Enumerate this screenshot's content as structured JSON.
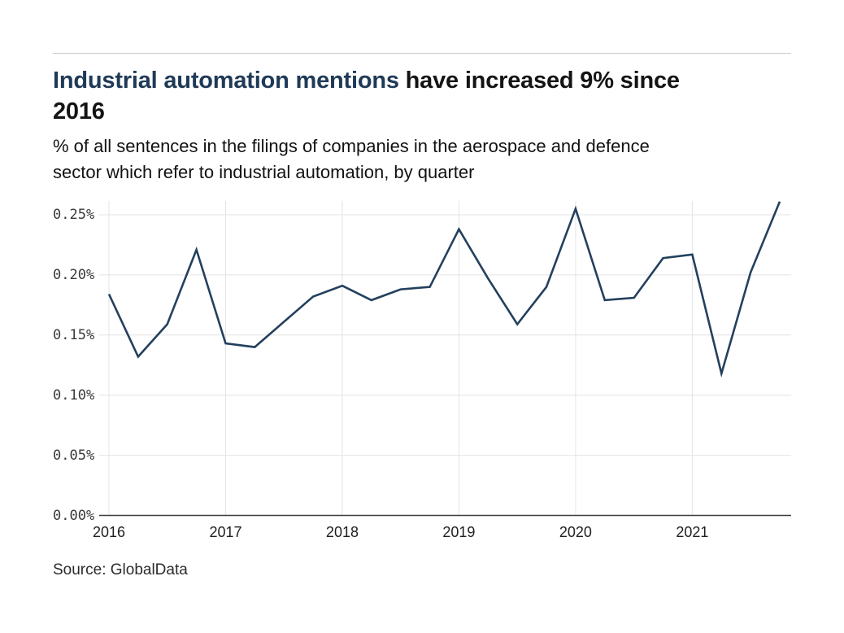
{
  "page": {
    "background": "#ffffff",
    "divider_color": "#cbcbcb"
  },
  "header": {
    "title_highlight": "Industrial automation mentions",
    "title_rest_line1": "have increased 9% since",
    "title_rest_line2": "2016",
    "title_highlight_color": "#1f3a57",
    "title_text_color": "#141414",
    "subtitle_line1": "% of all sentences in the filings of companies in the aerospace and defence",
    "subtitle_line2": "sector which refer to industrial automation, by quarter"
  },
  "chart_data": {
    "type": "line",
    "title": "Industrial automation mentions have increased 9% since 2016",
    "subtitle": "% of all sentences in the filings of companies in the aerospace and defence sector which refer to industrial automation, by quarter",
    "unit": "%",
    "x": [
      "2016 Q1",
      "2016 Q2",
      "2016 Q3",
      "2016 Q4",
      "2017 Q1",
      "2017 Q2",
      "2017 Q3",
      "2017 Q4",
      "2018 Q1",
      "2018 Q2",
      "2018 Q3",
      "2018 Q4",
      "2019 Q1",
      "2019 Q2",
      "2019 Q3",
      "2019 Q4",
      "2020 Q1",
      "2020 Q2",
      "2020 Q3",
      "2020 Q4",
      "2021 Q1",
      "2021 Q2",
      "2021 Q3",
      "2021 Q4"
    ],
    "values": [
      0.184,
      0.132,
      0.159,
      0.221,
      0.143,
      0.14,
      0.161,
      0.182,
      0.191,
      0.179,
      0.188,
      0.19,
      0.238,
      0.197,
      0.159,
      0.19,
      0.255,
      0.179,
      0.181,
      0.214,
      0.217,
      0.118,
      0.202,
      0.261
    ],
    "x_tick_labels": [
      "2016",
      "2017",
      "2018",
      "2019",
      "2020",
      "2021"
    ],
    "x_tick_positions": [
      0,
      4,
      8,
      12,
      16,
      20
    ],
    "y_tick_labels": [
      "0.00%",
      "0.05%",
      "0.10%",
      "0.15%",
      "0.20%",
      "0.25%"
    ],
    "y_tick_values": [
      0,
      0.05,
      0.1,
      0.15,
      0.2,
      0.25
    ],
    "ylim": [
      0,
      0.265
    ],
    "grid": true,
    "legend": "none",
    "line_color": "#24405e",
    "grid_color": "#e4e4e4",
    "axis_color": "#3d3d3d"
  },
  "footer": {
    "source": "Source: GlobalData"
  }
}
